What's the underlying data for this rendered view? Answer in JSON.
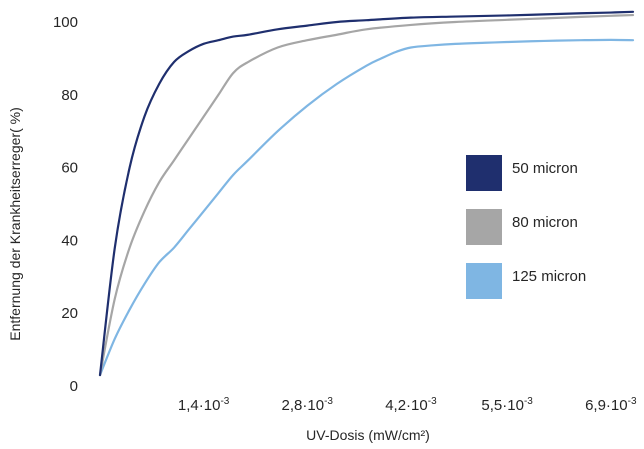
{
  "chart_data": {
    "type": "line",
    "xlabel": "UV-Dosis (mW/cm²)",
    "ylabel": "Entfernung der Krankheitserreger( %)",
    "xlim": [
      0,
      0.0072
    ],
    "ylim": [
      0,
      100
    ],
    "x_ticks": [
      {
        "value": 0.0014,
        "label": "1,4·10",
        "exp": "-3"
      },
      {
        "value": 0.0028,
        "label": "2,8·10",
        "exp": "-3"
      },
      {
        "value": 0.0042,
        "label": "4,2·10",
        "exp": "-3"
      },
      {
        "value": 0.0055,
        "label": "5,5·10",
        "exp": "-3"
      },
      {
        "value": 0.0069,
        "label": "6,9·10",
        "exp": "-3"
      }
    ],
    "y_ticks": [
      0,
      20,
      40,
      60,
      80,
      100
    ],
    "grid": false,
    "legend_position": "right",
    "series": [
      {
        "name": "50 micron",
        "color": "#1f2f6e",
        "x": [
          0,
          0.0002,
          0.0004,
          0.0006,
          0.0008,
          0.001,
          0.0012,
          0.0014,
          0.0016,
          0.0018,
          0.002,
          0.0024,
          0.0028,
          0.0032,
          0.0036,
          0.0042,
          0.0048,
          0.0055,
          0.006,
          0.0065,
          0.0069,
          0.0072
        ],
        "y": [
          3,
          38,
          60,
          74,
          83,
          89,
          92,
          94,
          95,
          96,
          96.5,
          98,
          99,
          100,
          100.5,
          101.2,
          101.5,
          101.8,
          102.1,
          102.4,
          102.6,
          102.8
        ]
      },
      {
        "name": "80 micron",
        "color": "#a6a6a6",
        "x": [
          0,
          0.0002,
          0.0004,
          0.0006,
          0.0008,
          0.001,
          0.0012,
          0.0014,
          0.0016,
          0.0018,
          0.002,
          0.0024,
          0.0028,
          0.0032,
          0.0036,
          0.0042,
          0.0048,
          0.0055,
          0.006,
          0.0065,
          0.0069,
          0.0072
        ],
        "y": [
          3,
          24,
          38,
          48,
          56,
          62,
          68,
          74,
          80,
          86,
          89,
          93,
          95,
          96.5,
          98,
          99.2,
          100,
          100.6,
          101,
          101.4,
          101.7,
          101.9
        ]
      },
      {
        "name": "125 micron",
        "color": "#7fb6e3",
        "x": [
          0,
          0.0002,
          0.0004,
          0.0006,
          0.0008,
          0.001,
          0.0012,
          0.0014,
          0.0016,
          0.0018,
          0.002,
          0.0024,
          0.0028,
          0.0032,
          0.0036,
          0.0038,
          0.004,
          0.0042,
          0.0045,
          0.0048,
          0.0052,
          0.0055,
          0.006,
          0.0065,
          0.0069,
          0.0072
        ],
        "y": [
          3,
          13,
          21,
          28,
          34,
          38,
          43,
          48,
          53,
          58,
          62,
          70,
          77,
          83,
          88,
          90,
          91.8,
          93,
          93.6,
          94,
          94.3,
          94.5,
          94.8,
          95,
          95.1,
          95
        ]
      }
    ]
  }
}
